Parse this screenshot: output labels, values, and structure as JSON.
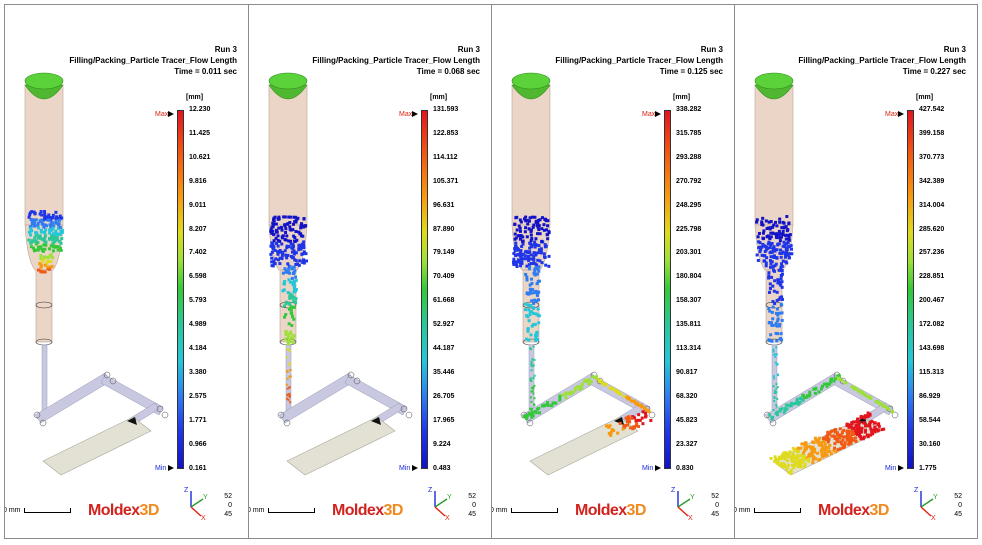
{
  "panels": [
    {
      "run": "Run 3",
      "result": "Filling/Packing_Particle Tracer_Flow Length",
      "time": "Time = 0.011 sec",
      "unit": "[mm]",
      "max_label": "Max",
      "min_label": "Min",
      "ticks": [
        "12.230",
        "11.425",
        "10.621",
        "9.816",
        "9.011",
        "8.207",
        "7.402",
        "6.598",
        "5.793",
        "4.989",
        "4.184",
        "3.380",
        "2.575",
        "1.771",
        "0.966",
        "0.161"
      ],
      "stage": 1,
      "scale_label": "0 mm",
      "logo_main": "Moldex",
      "logo_accent": "3D",
      "axis": {
        "z": "Z",
        "y": "Y",
        "x": "X"
      },
      "coords": [
        "52",
        "0",
        "45"
      ]
    },
    {
      "run": "Run 3",
      "result": "Filling/Packing_Particle Tracer_Flow Length",
      "time": "Time = 0.068 sec",
      "unit": "[mm]",
      "max_label": "Max",
      "min_label": "Min",
      "ticks": [
        "131.593",
        "122.853",
        "114.112",
        "105.371",
        "96.631",
        "87.890",
        "79.149",
        "70.409",
        "61.668",
        "52.927",
        "44.187",
        "35.446",
        "26.705",
        "17.965",
        "9.224",
        "0.483"
      ],
      "stage": 2,
      "scale_label": "0 mm",
      "logo_main": "Moldex",
      "logo_accent": "3D",
      "axis": {
        "z": "Z",
        "y": "Y",
        "x": "X"
      },
      "coords": [
        "52",
        "0",
        "45"
      ]
    },
    {
      "run": "Run 3",
      "result": "Filling/Packing_Particle Tracer_Flow Length",
      "time": "Time = 0.125 sec",
      "unit": "[mm]",
      "max_label": "Max",
      "min_label": "Min",
      "ticks": [
        "338.282",
        "315.785",
        "293.288",
        "270.792",
        "248.295",
        "225.798",
        "203.301",
        "180.804",
        "158.307",
        "135.811",
        "113.314",
        "90.817",
        "68.320",
        "45.823",
        "23.327",
        "0.830"
      ],
      "stage": 3,
      "scale_label": "0 mm",
      "logo_main": "Moldex",
      "logo_accent": "3D",
      "axis": {
        "z": "Z",
        "y": "Y",
        "x": "X"
      },
      "coords": [
        "52",
        "0",
        "45"
      ]
    },
    {
      "run": "Run 3",
      "result": "Filling/Packing_Particle Tracer_Flow Length",
      "time": "Time = 0.227 sec",
      "unit": "[mm]",
      "max_label": "Max",
      "min_label": "Min",
      "ticks": [
        "427.542",
        "399.158",
        "370.773",
        "342.389",
        "314.004",
        "285.620",
        "257.236",
        "228.851",
        "200.467",
        "172.082",
        "143.698",
        "115.313",
        "86.929",
        "58.544",
        "30.160",
        "1.775"
      ],
      "stage": 4,
      "scale_label": "0 mm",
      "logo_main": "Moldex",
      "logo_accent": "3D",
      "axis": {
        "z": "Z",
        "y": "Y",
        "x": "X"
      },
      "coords": [
        "52",
        "0",
        "45"
      ]
    }
  ]
}
